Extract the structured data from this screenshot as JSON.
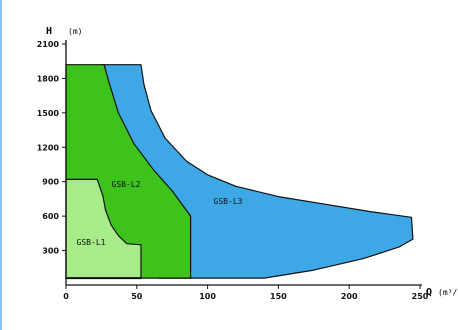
{
  "chart_data": {
    "type": "area",
    "title": "",
    "xlabel": "Q",
    "xunit": "(m³/h)",
    "ylabel": "H",
    "yunit": "(m)",
    "xlim": [
      0,
      250
    ],
    "ylim": [
      0,
      2100
    ],
    "x_ticks": [
      0,
      50,
      100,
      150,
      200,
      250
    ],
    "y_ticks": [
      300,
      600,
      900,
      1200,
      1500,
      1800,
      2100
    ],
    "grid": false,
    "legend": "none",
    "regions": [
      {
        "name": "GSB-L3",
        "color": "#3ea8e6",
        "boundary": [
          [
            25,
            1920
          ],
          [
            53,
            1920
          ],
          [
            55,
            1750
          ],
          [
            60,
            1520
          ],
          [
            70,
            1280
          ],
          [
            85,
            1080
          ],
          [
            100,
            960
          ],
          [
            120,
            860
          ],
          [
            150,
            770
          ],
          [
            185,
            700
          ],
          [
            215,
            640
          ],
          [
            244,
            590
          ],
          [
            245,
            400
          ],
          [
            235,
            330
          ],
          [
            210,
            230
          ],
          [
            175,
            130
          ],
          [
            140,
            60
          ],
          [
            120,
            60
          ],
          [
            65,
            60
          ]
        ]
      },
      {
        "name": "GSB-L2",
        "color": "#3ec31c",
        "boundary": [
          [
            0,
            1920
          ],
          [
            27,
            1920
          ],
          [
            30,
            1780
          ],
          [
            37,
            1500
          ],
          [
            48,
            1230
          ],
          [
            62,
            1000
          ],
          [
            75,
            820
          ],
          [
            88,
            600
          ],
          [
            88,
            60
          ],
          [
            0,
            60
          ]
        ]
      },
      {
        "name": "GSB-L1",
        "color": "#a8ec8a",
        "boundary": [
          [
            0,
            920
          ],
          [
            22,
            920
          ],
          [
            26,
            780
          ],
          [
            28,
            650
          ],
          [
            32,
            520
          ],
          [
            37,
            430
          ],
          [
            43,
            360
          ],
          [
            53,
            350
          ],
          [
            53,
            60
          ],
          [
            0,
            60
          ]
        ]
      }
    ],
    "bottom_line": {
      "x": [
        0,
        53
      ],
      "y": 60,
      "color": "#111111"
    }
  }
}
